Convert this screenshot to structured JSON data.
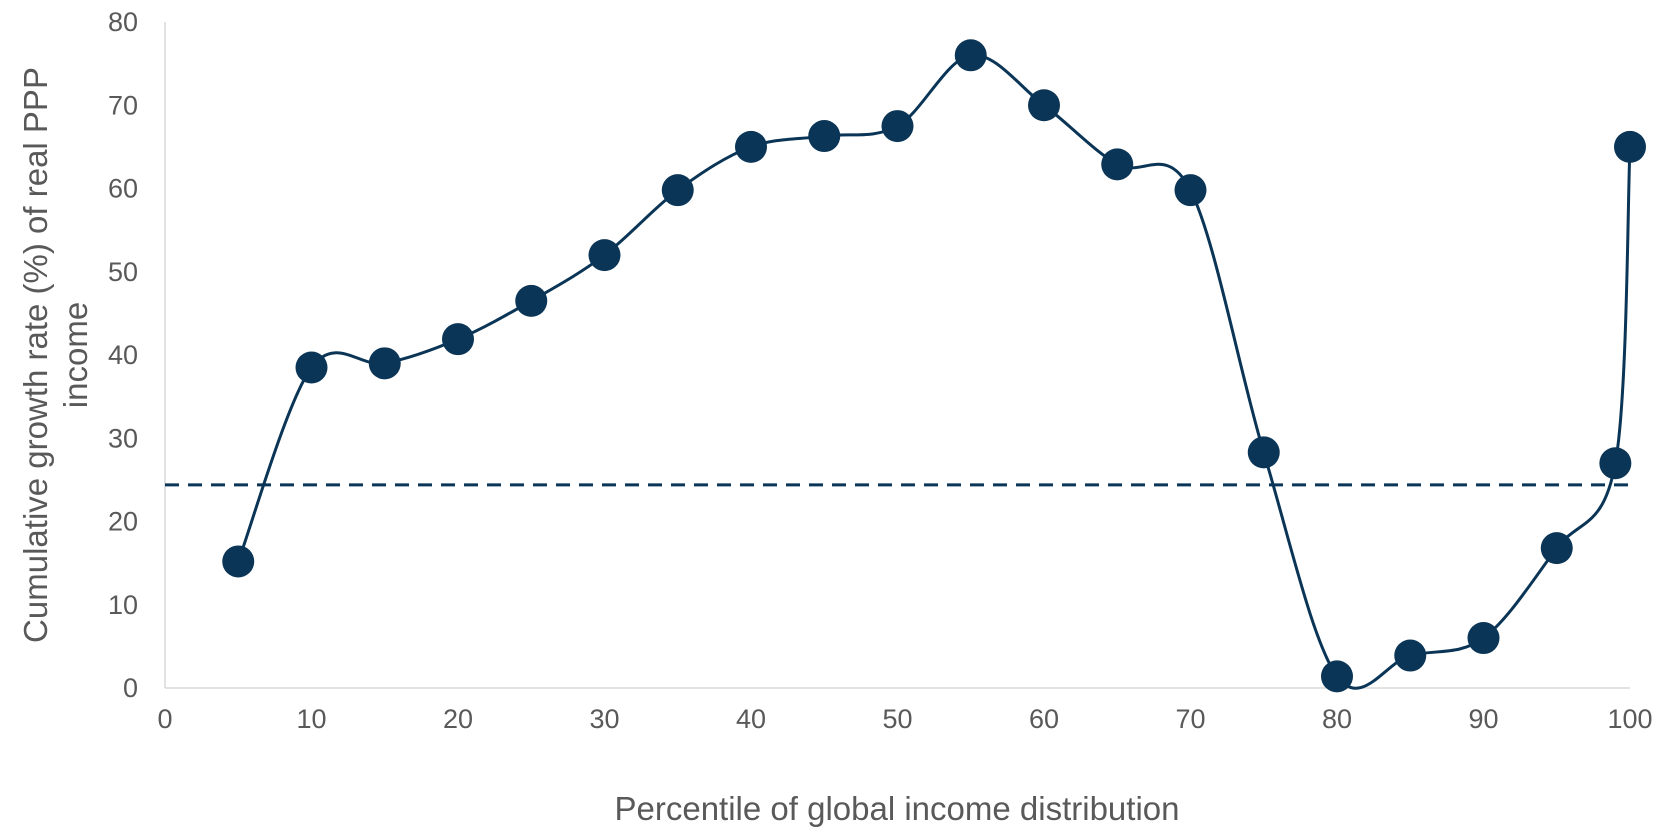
{
  "chart_data": {
    "type": "line",
    "title": "",
    "xlabel": "Percentile of global income distribution",
    "ylabel_lines": [
      "Cumulative growth rate (%) of real PPP",
      "income"
    ],
    "xlim": [
      0,
      100
    ],
    "ylim": [
      0,
      80
    ],
    "x_ticks": [
      0,
      10,
      20,
      30,
      40,
      50,
      60,
      70,
      80,
      90,
      100
    ],
    "y_ticks": [
      0,
      10,
      20,
      30,
      40,
      50,
      60,
      70,
      80
    ],
    "grid": false,
    "legend": "none",
    "series": [
      {
        "x": [
          5,
          10,
          15,
          20,
          25,
          30,
          35,
          40,
          45,
          50,
          55,
          60,
          65,
          70,
          75,
          80,
          85,
          90,
          95,
          99,
          100
        ],
        "values": [
          15.2,
          38.5,
          39.0,
          41.9,
          46.5,
          52.0,
          59.8,
          65.0,
          66.3,
          67.5,
          76.0,
          70.0,
          62.9,
          59.8,
          28.3,
          1.4,
          3.9,
          6.0,
          16.8,
          27.0,
          65.0
        ],
        "line_style": "smooth",
        "marker": "circle",
        "color": "#0b3556"
      }
    ],
    "reference_line": {
      "y": 24.4,
      "style": "dashed",
      "color": "#0b3556"
    }
  }
}
